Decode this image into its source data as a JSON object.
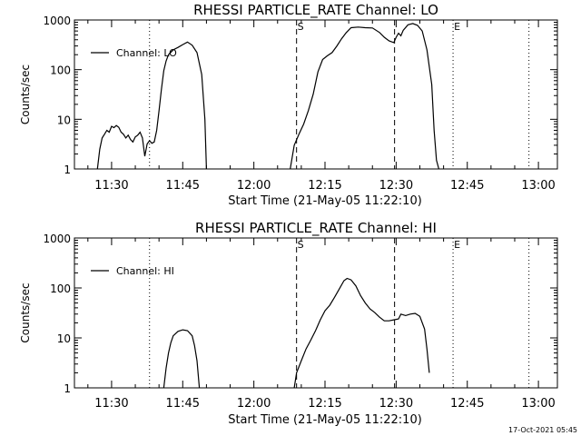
{
  "footer_timestamp": "17-Oct-2021 05:45",
  "chart_data": [
    {
      "type": "line",
      "title": "RHESSI PARTICLE_RATE Channel: LO",
      "xlabel": "Start Time (21-May-05 11:22:10)",
      "ylabel": "Counts/sec",
      "yscale": "log",
      "ylim": [
        1,
        1000
      ],
      "xlim": [
        "11:22:10",
        "13:04:00"
      ],
      "x_ticks": [
        "11:30",
        "11:45",
        "12:00",
        "12:15",
        "12:30",
        "12:45",
        "13:00"
      ],
      "y_ticks": [
        "1",
        "10",
        "100",
        "1000"
      ],
      "legend": {
        "label": "Channel: LO",
        "placement": "top-left"
      },
      "markers": [
        {
          "label": "",
          "time": "11:38:00",
          "style": "dotted"
        },
        {
          "label": "S",
          "time": "12:09:00",
          "style": "dashed"
        },
        {
          "label": "",
          "time": "12:29:40",
          "style": "dashed"
        },
        {
          "label": "E",
          "time": "12:42:00",
          "style": "dotted"
        },
        {
          "label": "",
          "time": "12:58:00",
          "style": "dotted"
        }
      ],
      "series": [
        {
          "name": "Channel: LO",
          "segments": [
            [
              [
                "11:27:00",
                1
              ],
              [
                "11:27:30",
                2.5
              ],
              [
                "11:28:00",
                4.2
              ],
              [
                "11:28:30",
                5
              ],
              [
                "11:29:00",
                6
              ],
              [
                "11:29:30",
                5.5
              ],
              [
                "11:30:00",
                7.2
              ],
              [
                "11:30:30",
                6.8
              ],
              [
                "11:31:00",
                7.5
              ],
              [
                "11:31:30",
                6.9
              ],
              [
                "11:32:00",
                5.5
              ],
              [
                "11:32:30",
                5
              ],
              [
                "11:33:00",
                4.2
              ],
              [
                "11:33:30",
                4.8
              ],
              [
                "11:34:00",
                3.9
              ],
              [
                "11:34:30",
                3.5
              ],
              [
                "11:35:00",
                4.4
              ],
              [
                "11:35:30",
                4.8
              ],
              [
                "11:36:00",
                5.5
              ],
              [
                "11:36:30",
                4.2
              ],
              [
                "11:37:00",
                1.8
              ],
              [
                "11:37:30",
                3.2
              ],
              [
                "11:38:00",
                3.7
              ],
              [
                "11:38:30",
                3.3
              ],
              [
                "11:39:00",
                3.5
              ],
              [
                "11:39:30",
                6
              ],
              [
                "11:40:00",
                15
              ],
              [
                "11:40:30",
                40
              ],
              [
                "11:41:00",
                95
              ],
              [
                "11:41:30",
                150
              ],
              [
                "11:42:00",
                200
              ],
              [
                "11:43:00",
                250
              ],
              [
                "11:44:00",
                280
              ],
              [
                "11:45:00",
                320
              ],
              [
                "11:46:00",
                360
              ],
              [
                "11:47:00",
                310
              ],
              [
                "11:48:00",
                220
              ],
              [
                "11:49:00",
                80
              ],
              [
                "11:49:40",
                10
              ],
              [
                "11:50:00",
                1
              ]
            ],
            [
              [
                "12:07:40",
                1
              ],
              [
                "12:08:30",
                3
              ],
              [
                "12:09:30",
                5
              ],
              [
                "12:10:30",
                8
              ],
              [
                "12:11:30",
                15
              ],
              [
                "12:12:30",
                32
              ],
              [
                "12:13:30",
                90
              ],
              [
                "12:14:30",
                160
              ],
              [
                "12:15:30",
                190
              ],
              [
                "12:16:30",
                220
              ],
              [
                "12:17:30",
                300
              ],
              [
                "12:18:30",
                420
              ],
              [
                "12:19:30",
                560
              ],
              [
                "12:20:30",
                700
              ],
              [
                "12:22:00",
                720
              ],
              [
                "12:23:30",
                700
              ],
              [
                "12:25:00",
                690
              ],
              [
                "12:26:30",
                560
              ],
              [
                "12:27:30",
                450
              ],
              [
                "12:28:30",
                380
              ],
              [
                "12:29:30",
                350
              ],
              [
                "12:30:00",
                450
              ],
              [
                "12:30:30",
                540
              ],
              [
                "12:31:00",
                480
              ],
              [
                "12:31:30",
                620
              ],
              [
                "12:32:30",
                800
              ],
              [
                "12:33:30",
                850
              ],
              [
                "12:34:30",
                780
              ],
              [
                "12:35:30",
                600
              ],
              [
                "12:36:30",
                250
              ],
              [
                "12:37:30",
                50
              ],
              [
                "12:38:00",
                6
              ],
              [
                "12:38:30",
                1.5
              ],
              [
                "12:39:00",
                1
              ]
            ]
          ]
        }
      ]
    },
    {
      "type": "line",
      "title": "RHESSI PARTICLE_RATE Channel: HI",
      "xlabel": "Start Time (21-May-05 11:22:10)",
      "ylabel": "Counts/sec",
      "yscale": "log",
      "ylim": [
        1,
        1000
      ],
      "xlim": [
        "11:22:10",
        "13:04:00"
      ],
      "x_ticks": [
        "11:30",
        "11:45",
        "12:00",
        "12:15",
        "12:30",
        "12:45",
        "13:00"
      ],
      "y_ticks": [
        "1",
        "10",
        "100",
        "1000"
      ],
      "legend": {
        "label": "Channel: HI",
        "placement": "top-left"
      },
      "markers": [
        {
          "label": "",
          "time": "11:38:00",
          "style": "dotted"
        },
        {
          "label": "S",
          "time": "12:09:00",
          "style": "dashed"
        },
        {
          "label": "",
          "time": "12:29:40",
          "style": "dashed"
        },
        {
          "label": "E",
          "time": "12:42:00",
          "style": "dotted"
        },
        {
          "label": "",
          "time": "12:58:00",
          "style": "dotted"
        }
      ],
      "series": [
        {
          "name": "Channel: HI",
          "segments": [
            [
              [
                "11:41:00",
                1
              ],
              [
                "11:41:30",
                2.5
              ],
              [
                "11:42:00",
                5
              ],
              [
                "11:42:30",
                8
              ],
              [
                "11:43:00",
                11
              ],
              [
                "11:44:00",
                13.5
              ],
              [
                "11:45:00",
                14.5
              ],
              [
                "11:46:00",
                14
              ],
              [
                "11:47:00",
                11
              ],
              [
                "11:47:30",
                7
              ],
              [
                "11:48:00",
                3.5
              ],
              [
                "11:48:30",
                1
              ]
            ],
            [
              [
                "12:08:30",
                1
              ],
              [
                "12:09:00",
                2
              ],
              [
                "12:10:00",
                3.5
              ],
              [
                "12:11:00",
                6
              ],
              [
                "12:12:00",
                9
              ],
              [
                "12:13:00",
                14
              ],
              [
                "12:14:00",
                23
              ],
              [
                "12:15:00",
                35
              ],
              [
                "12:16:00",
                45
              ],
              [
                "12:17:00",
                65
              ],
              [
                "12:18:00",
                95
              ],
              [
                "12:19:00",
                140
              ],
              [
                "12:19:40",
                155
              ],
              [
                "12:20:30",
                145
              ],
              [
                "12:21:30",
                110
              ],
              [
                "12:22:30",
                70
              ],
              [
                "12:23:30",
                50
              ],
              [
                "12:24:30",
                38
              ],
              [
                "12:25:30",
                32
              ],
              [
                "12:26:30",
                26
              ],
              [
                "12:27:30",
                22
              ],
              [
                "12:28:30",
                22
              ],
              [
                "12:29:30",
                23
              ],
              [
                "12:30:30",
                24
              ],
              [
                "12:31:00",
                30
              ],
              [
                "12:32:00",
                28
              ],
              [
                "12:33:00",
                30
              ],
              [
                "12:34:00",
                31
              ],
              [
                "12:35:00",
                27
              ],
              [
                "12:36:00",
                15
              ],
              [
                "12:36:30",
                6
              ],
              [
                "12:37:00",
                2
              ]
            ]
          ]
        }
      ]
    }
  ]
}
